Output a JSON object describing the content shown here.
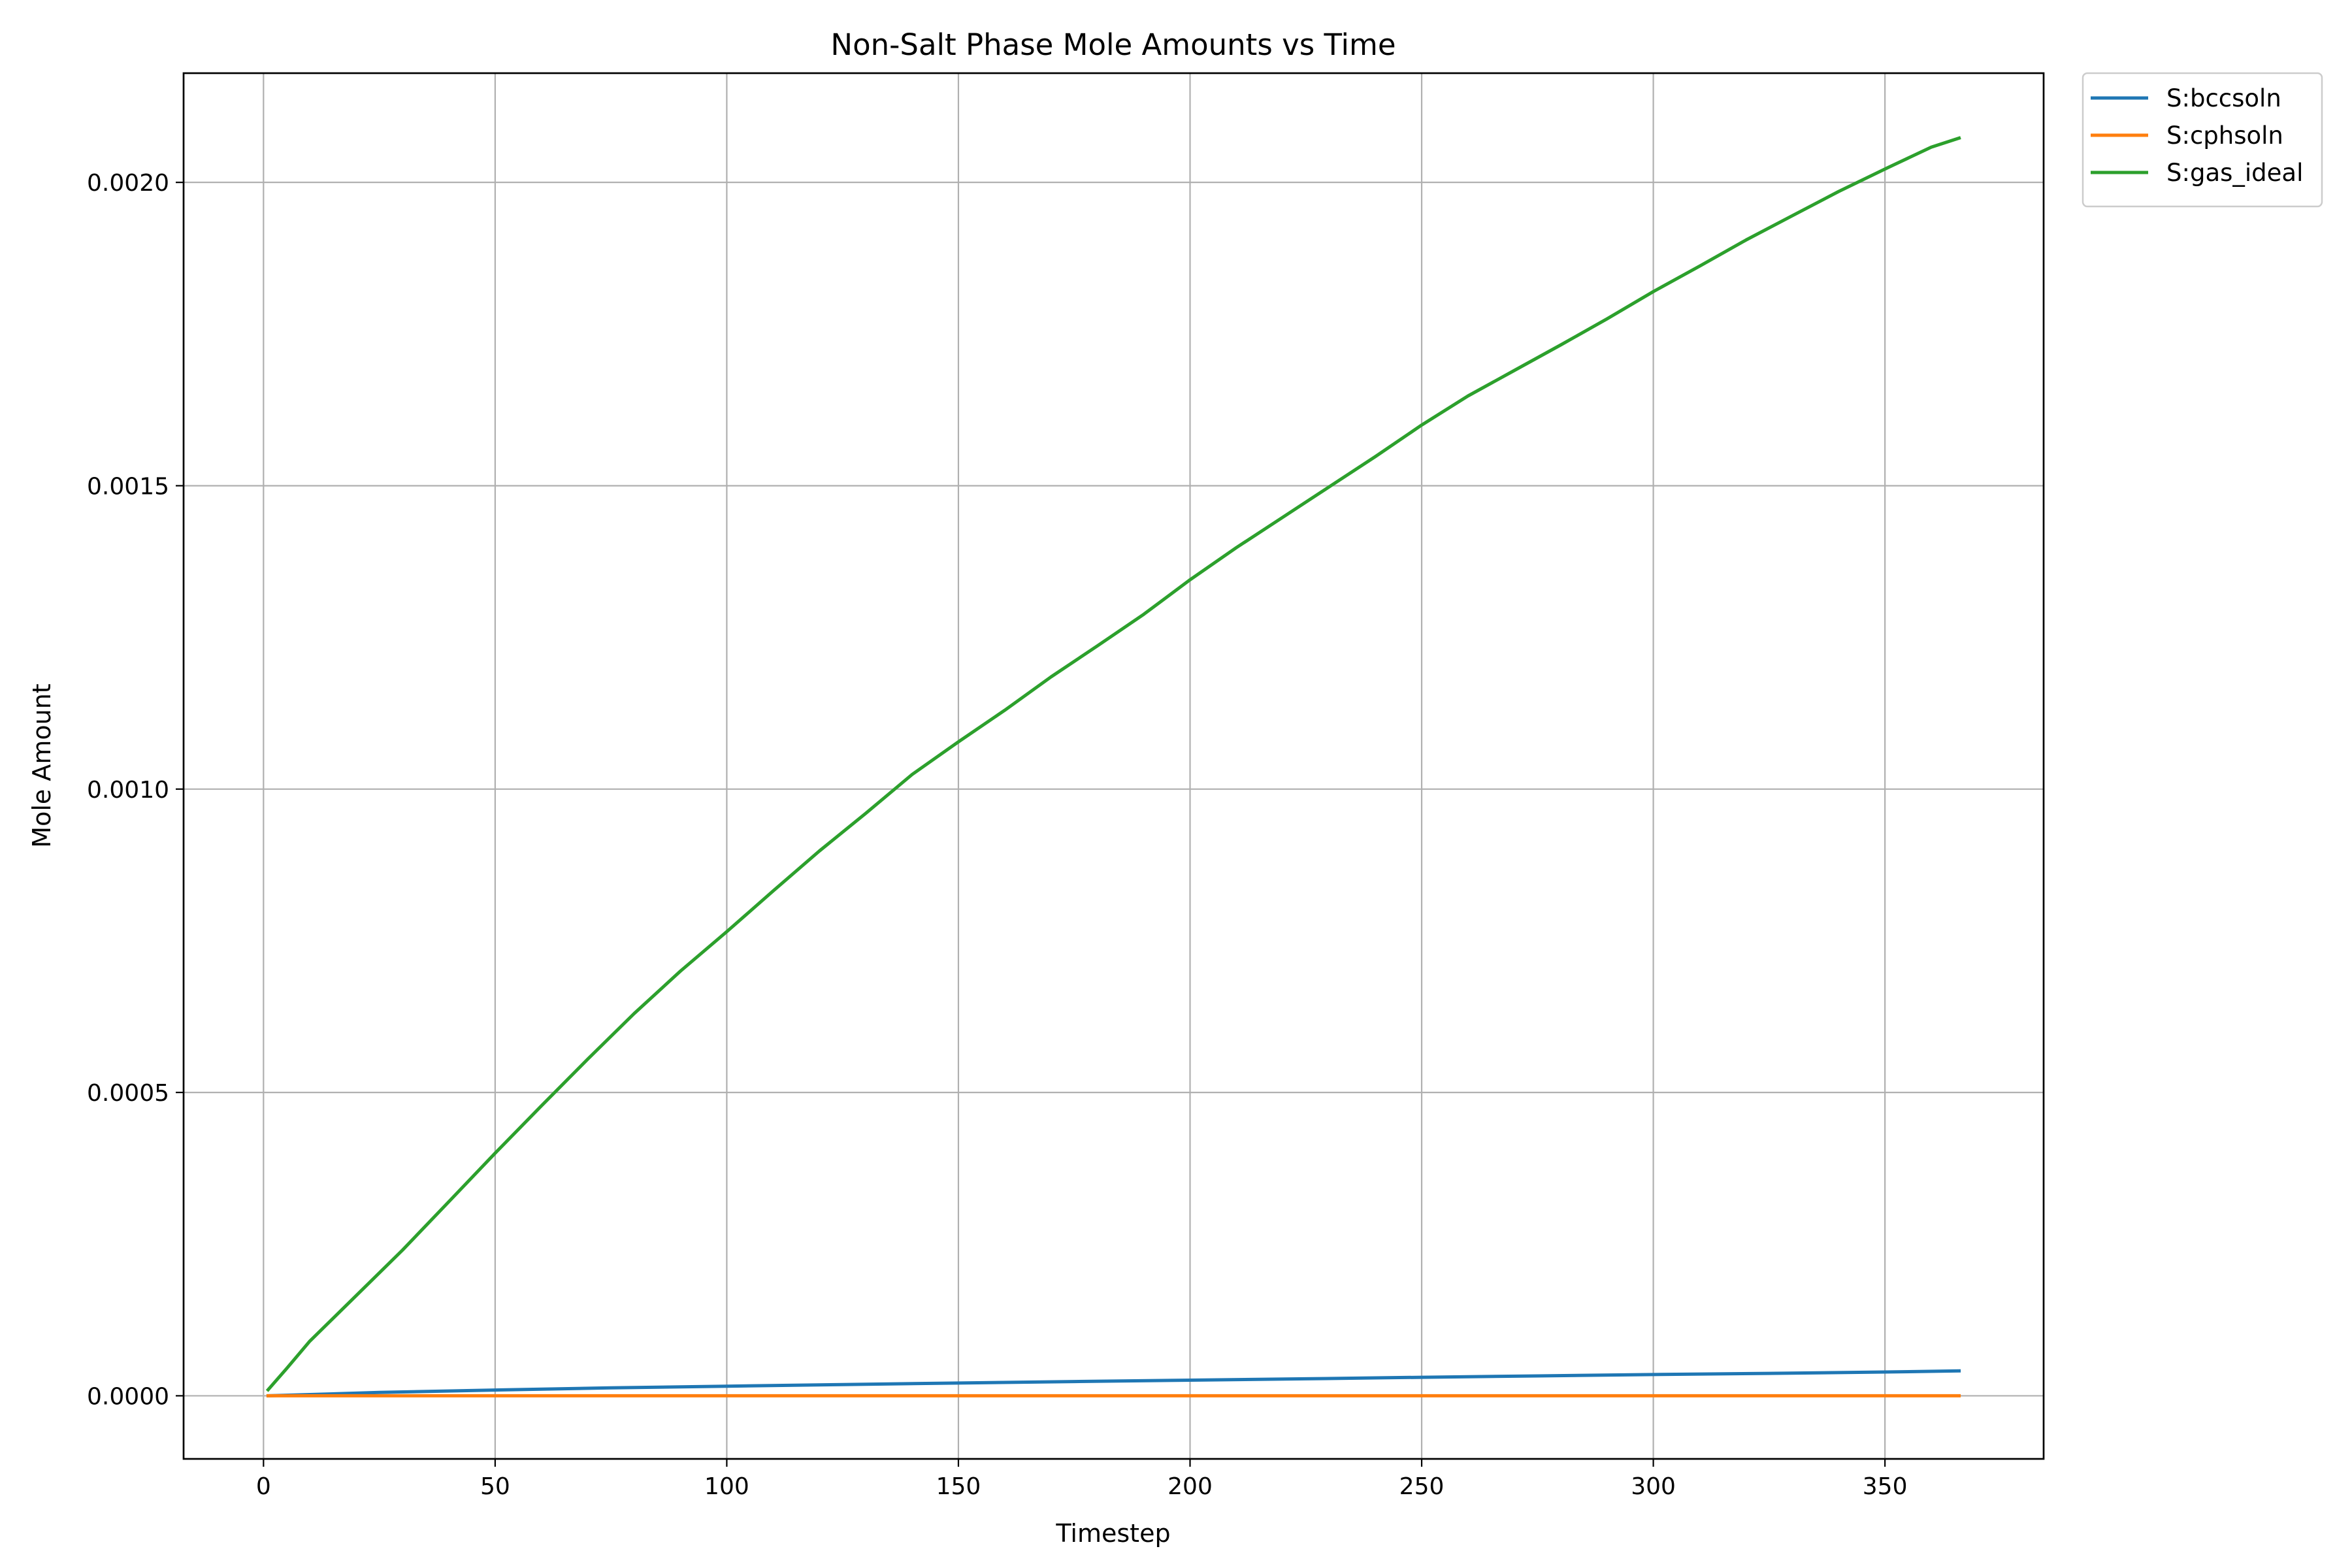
{
  "chart_data": {
    "type": "line",
    "title": "Non-Salt Phase Mole Amounts vs Time",
    "xlabel": "Timestep",
    "ylabel": "Mole Amount",
    "xlim": [
      -17.25,
      384.25
    ],
    "ylim": [
      -0.000104,
      0.00218
    ],
    "xticks": [
      0,
      50,
      100,
      150,
      200,
      250,
      300,
      350
    ],
    "xtick_labels": [
      "0",
      "50",
      "100",
      "150",
      "200",
      "250",
      "300",
      "350"
    ],
    "yticks": [
      0.0,
      0.0005,
      0.001,
      0.0015,
      0.002
    ],
    "ytick_labels": [
      "0.0000",
      "0.0005",
      "0.0010",
      "0.0015",
      "0.0020"
    ],
    "grid": true,
    "legend_position": "outside-top-right",
    "series": [
      {
        "name": "S:bccsoln",
        "color": "#1f77b4",
        "x": [
          1,
          25,
          50,
          75,
          100,
          125,
          150,
          175,
          200,
          225,
          250,
          275,
          300,
          325,
          350,
          366
        ],
        "y": [
          0.0,
          5.5e-06,
          9.5e-06,
          1.3e-05,
          1.58e-05,
          1.85e-05,
          2.1e-05,
          2.35e-05,
          2.58e-05,
          2.8e-05,
          3.05e-05,
          3.28e-05,
          3.5e-05,
          3.7e-05,
          3.92e-05,
          4.1e-05
        ]
      },
      {
        "name": "S:cphsoln",
        "color": "#ff7f0e",
        "x": [
          1,
          50,
          100,
          150,
          200,
          250,
          300,
          350,
          366
        ],
        "y": [
          0.0,
          0.0,
          0.0,
          0.0,
          0.0,
          0.0,
          0.0,
          0.0,
          0.0
        ]
      },
      {
        "name": "S:gas_ideal",
        "color": "#2ca02c",
        "x": [
          1,
          5,
          10,
          20,
          30,
          40,
          50,
          60,
          70,
          80,
          90,
          100,
          110,
          120,
          130,
          140,
          150,
          160,
          170,
          180,
          190,
          200,
          210,
          220,
          230,
          240,
          250,
          260,
          270,
          280,
          290,
          300,
          310,
          320,
          330,
          340,
          350,
          360,
          366
        ],
        "y": [
          1e-05,
          4.5e-05,
          9e-05,
          0.000165,
          0.00024,
          0.00032,
          0.0004,
          0.000478,
          0.000555,
          0.00063,
          0.0007,
          0.000765,
          0.000832,
          0.000898,
          0.00096,
          0.001024,
          0.001078,
          0.00113,
          0.001185,
          0.001236,
          0.001288,
          0.001345,
          0.001398,
          0.001448,
          0.001498,
          0.001548,
          0.0016,
          0.001648,
          0.00169,
          0.001732,
          0.001775,
          0.00182,
          0.001862,
          0.001905,
          0.001945,
          0.001985,
          0.002022,
          0.002058,
          0.002073
        ]
      }
    ]
  }
}
